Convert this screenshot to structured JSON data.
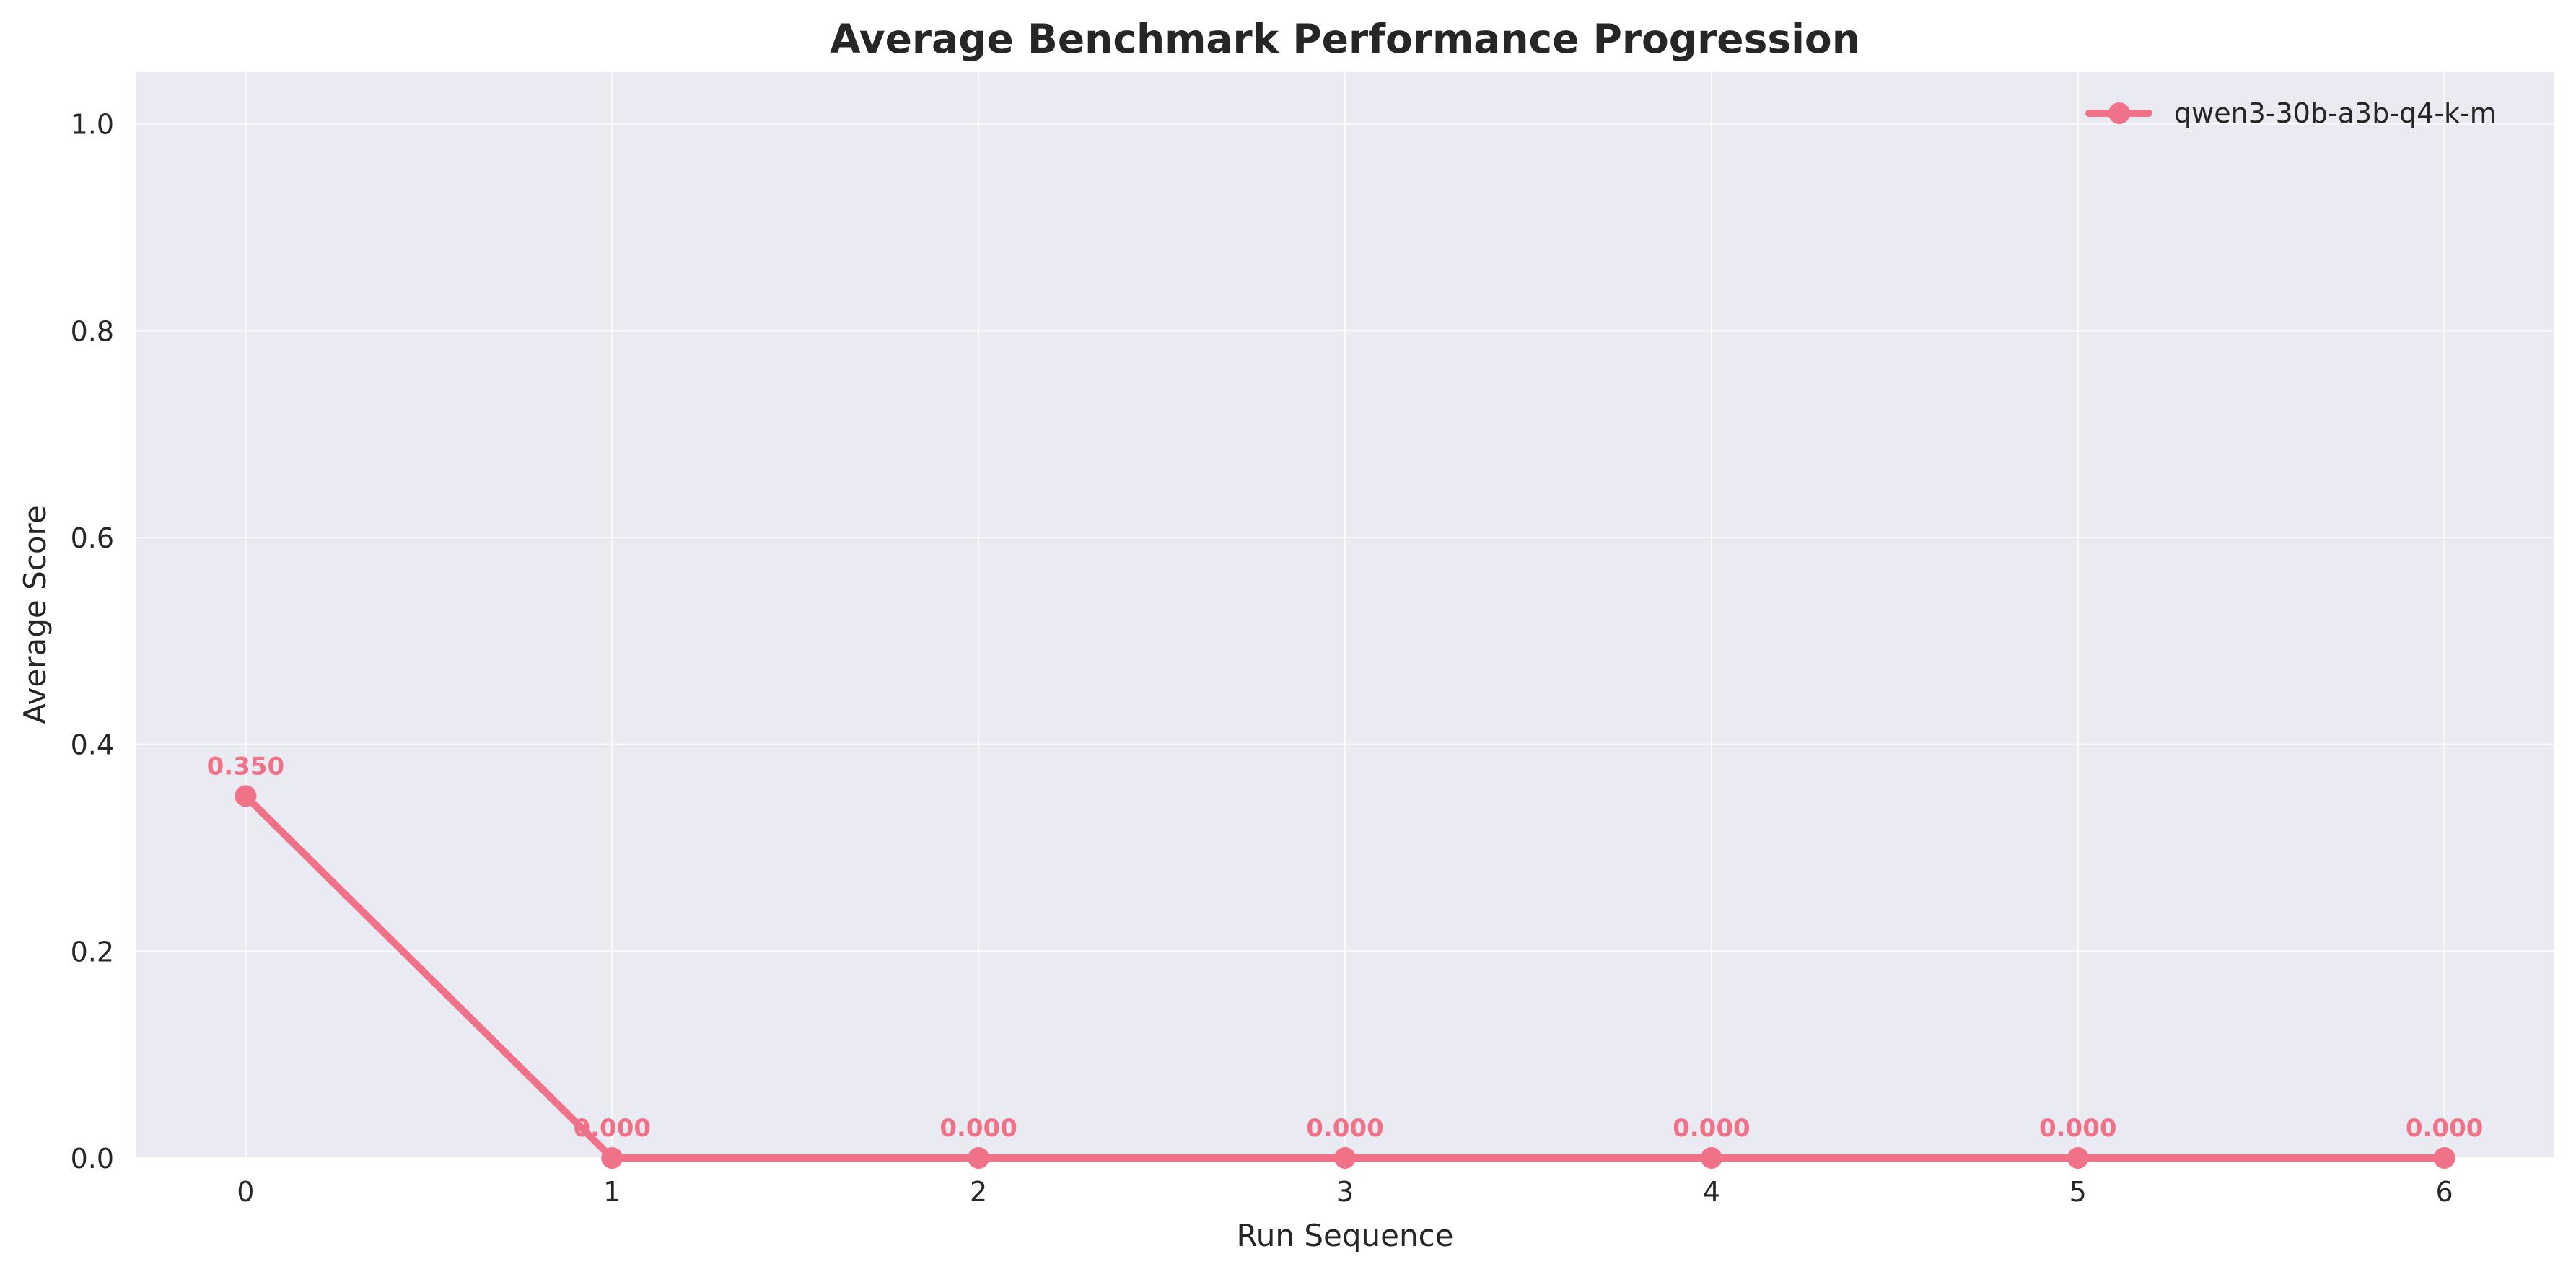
{
  "chart_data": {
    "type": "line",
    "title": "Average Benchmark Performance Progression",
    "xlabel": "Run Sequence",
    "ylabel": "Average Score",
    "x": [
      0,
      1,
      2,
      3,
      4,
      5,
      6
    ],
    "xticks": [
      "0",
      "1",
      "2",
      "3",
      "4",
      "5",
      "6"
    ],
    "yticks": [
      "0.0",
      "0.2",
      "0.4",
      "0.6",
      "0.8",
      "1.0"
    ],
    "xlim": [
      -0.3,
      6.3
    ],
    "ylim": [
      0.0,
      1.05
    ],
    "grid": true,
    "legend_position": "top-right",
    "series": [
      {
        "name": "qwen3-30b-a3b-q4-k-m",
        "values": [
          0.35,
          0.0,
          0.0,
          0.0,
          0.0,
          0.0,
          0.0
        ],
        "data_labels": [
          "0.350",
          "0.000",
          "0.000",
          "0.000",
          "0.000",
          "0.000",
          "0.000"
        ],
        "color": "#f07288"
      }
    ],
    "background_color": "#eaeaf2",
    "grid_color": "#ffffff",
    "text_color": "#262626"
  }
}
